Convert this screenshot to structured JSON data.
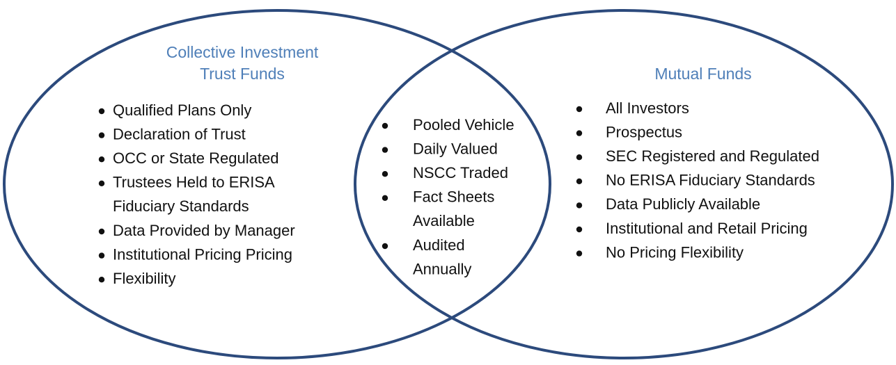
{
  "left": {
    "title_lines": [
      "Collective Investment",
      "Trust Funds"
    ],
    "items": [
      [
        "Qualified Plans Only"
      ],
      [
        "Declaration of Trust"
      ],
      [
        "OCC or State Regulated"
      ],
      [
        "Trustees Held to ERISA",
        "Fiduciary Standards"
      ],
      [
        "Data Provided by Manager"
      ],
      [
        "Institutional Pricing Pricing"
      ],
      [
        "Flexibility"
      ]
    ]
  },
  "middle": {
    "items": [
      [
        "Pooled Vehicle"
      ],
      [
        "Daily Valued"
      ],
      [
        "NSCC Traded"
      ],
      [
        "Fact Sheets",
        "Available"
      ],
      [
        "Audited",
        "Annually"
      ]
    ]
  },
  "right": {
    "title_lines": [
      "Mutual Funds"
    ],
    "items": [
      [
        "All Investors"
      ],
      [
        "Prospectus"
      ],
      [
        "SEC Registered and Regulated"
      ],
      [
        "No ERISA Fiduciary Standards"
      ],
      [
        "Data Publicly Available"
      ],
      [
        "Institutional and Retail Pricing"
      ],
      [
        "No Pricing Flexibility"
      ]
    ]
  }
}
